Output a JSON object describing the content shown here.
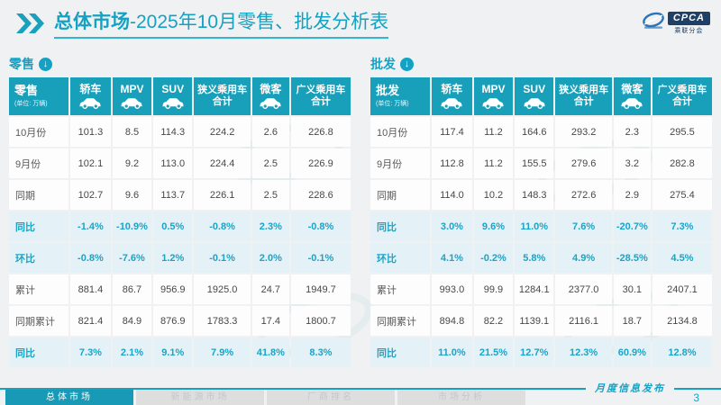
{
  "header": {
    "title_bold": "总体市场",
    "title_rest": "-2025年10月零售、批发分析表",
    "logo": {
      "text": "CPCA",
      "subtext": "乘联分会"
    }
  },
  "tables": [
    {
      "id": "retail",
      "section_label": "零售",
      "unit_note": "(单位: 万辆)",
      "columns": [
        {
          "label": "轿车",
          "icon": "sedan-icon"
        },
        {
          "label": "MPV",
          "icon": "mpv-icon"
        },
        {
          "label": "SUV",
          "icon": "suv-icon"
        },
        {
          "label": "狭义乘用车",
          "label2": "合计"
        },
        {
          "label": "微客",
          "icon": "microvan-icon"
        },
        {
          "label": "广义乘用车",
          "label2": "合计"
        }
      ],
      "rows": [
        {
          "label": "10月份",
          "highlight": false,
          "values": [
            "101.3",
            "8.5",
            "114.3",
            "224.2",
            "2.6",
            "226.8"
          ]
        },
        {
          "label": "9月份",
          "highlight": false,
          "values": [
            "102.1",
            "9.2",
            "113.0",
            "224.4",
            "2.5",
            "226.9"
          ]
        },
        {
          "label": "同期",
          "highlight": false,
          "values": [
            "102.7",
            "9.6",
            "113.7",
            "226.1",
            "2.5",
            "228.6"
          ]
        },
        {
          "label": "同比",
          "highlight": true,
          "values": [
            "-1.4%",
            "-10.9%",
            "0.5%",
            "-0.8%",
            "2.3%",
            "-0.8%"
          ]
        },
        {
          "label": "环比",
          "highlight": true,
          "values": [
            "-0.8%",
            "-7.6%",
            "1.2%",
            "-0.1%",
            "2.0%",
            "-0.1%"
          ]
        },
        {
          "label": "累计",
          "highlight": false,
          "values": [
            "881.4",
            "86.7",
            "956.9",
            "1925.0",
            "24.7",
            "1949.7"
          ]
        },
        {
          "label": "同期累计",
          "highlight": false,
          "values": [
            "821.4",
            "84.9",
            "876.9",
            "1783.3",
            "17.4",
            "1800.7"
          ]
        },
        {
          "label": "同比",
          "highlight": true,
          "values": [
            "7.3%",
            "2.1%",
            "9.1%",
            "7.9%",
            "41.8%",
            "8.3%"
          ]
        }
      ]
    },
    {
      "id": "wholesale",
      "section_label": "批发",
      "unit_note": "(单位: 万辆)",
      "columns": [
        {
          "label": "轿车",
          "icon": "sedan-icon"
        },
        {
          "label": "MPV",
          "icon": "mpv-icon"
        },
        {
          "label": "SUV",
          "icon": "suv-icon"
        },
        {
          "label": "狭义乘用车",
          "label2": "合计"
        },
        {
          "label": "微客",
          "icon": "microvan-icon"
        },
        {
          "label": "广义乘用车",
          "label2": "合计"
        }
      ],
      "rows": [
        {
          "label": "10月份",
          "highlight": false,
          "values": [
            "117.4",
            "11.2",
            "164.6",
            "293.2",
            "2.3",
            "295.5"
          ]
        },
        {
          "label": "9月份",
          "highlight": false,
          "values": [
            "112.8",
            "11.2",
            "155.5",
            "279.6",
            "3.2",
            "282.8"
          ]
        },
        {
          "label": "同期",
          "highlight": false,
          "values": [
            "114.0",
            "10.2",
            "148.3",
            "272.6",
            "2.9",
            "275.4"
          ]
        },
        {
          "label": "同比",
          "highlight": true,
          "values": [
            "3.0%",
            "9.6%",
            "11.0%",
            "7.6%",
            "-20.7%",
            "7.3%"
          ]
        },
        {
          "label": "环比",
          "highlight": true,
          "values": [
            "4.1%",
            "-0.2%",
            "5.8%",
            "4.9%",
            "-28.5%",
            "4.5%"
          ]
        },
        {
          "label": "累计",
          "highlight": false,
          "values": [
            "993.0",
            "99.9",
            "1284.1",
            "2377.0",
            "30.1",
            "2407.1"
          ]
        },
        {
          "label": "同期累计",
          "highlight": false,
          "values": [
            "894.8",
            "82.2",
            "1139.1",
            "2116.1",
            "18.7",
            "2134.8"
          ]
        },
        {
          "label": "同比",
          "highlight": true,
          "values": [
            "11.0%",
            "21.5%",
            "12.7%",
            "12.3%",
            "60.9%",
            "12.8%"
          ]
        }
      ]
    }
  ],
  "footer": {
    "tabs": [
      {
        "label": "总体市场",
        "active": true
      },
      {
        "label": "新能源市场",
        "active": false
      },
      {
        "label": "厂商排名",
        "active": false
      },
      {
        "label": "市场分析",
        "active": false
      }
    ],
    "banner": "月度信息发布",
    "page_number": "3"
  },
  "colors": {
    "accent_teal": "#189FBA",
    "title_teal": "#13A2C3",
    "highlight_row_bg": "#E4F1F7",
    "highlight_text": "#1BA4C6",
    "logo_navy": "#1E3F66",
    "inactive_tab_bg": "#DEDEDF",
    "page_bg": "#F0F1F2"
  }
}
